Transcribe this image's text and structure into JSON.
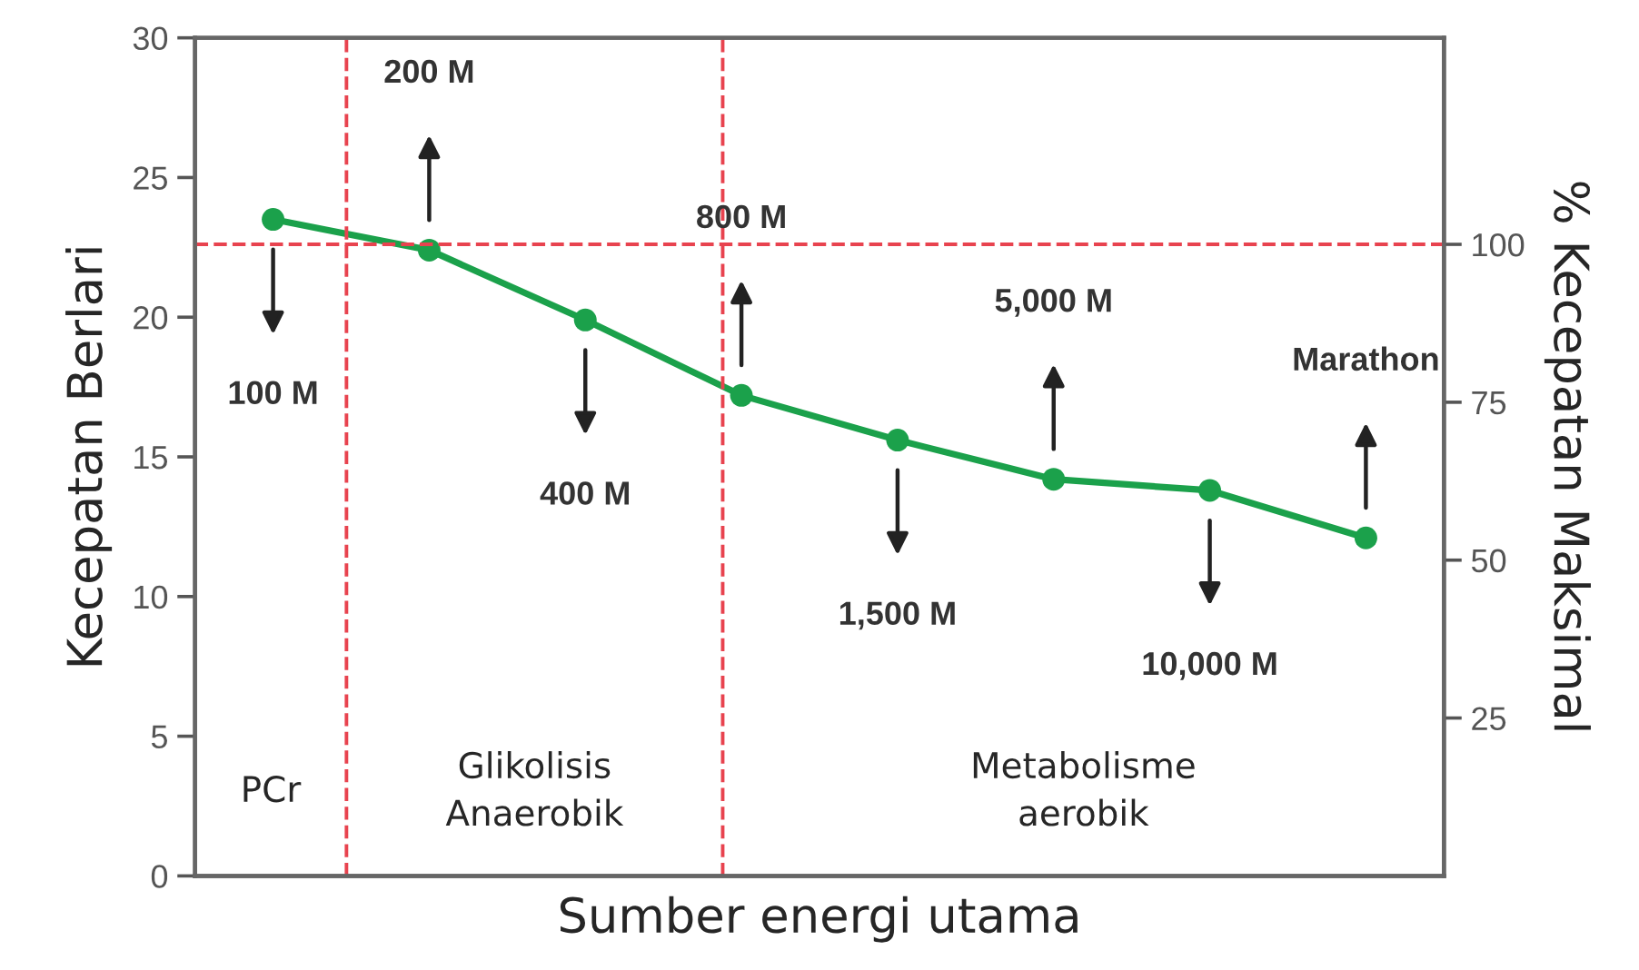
{
  "chart_data": {
    "type": "line",
    "xlabel": "Sumber energi utama",
    "ylabel": "Kecepatan Berlari",
    "y2label": "% Kecepatan Maksimal",
    "categories": [
      "100 M",
      "200 M",
      "400 M",
      "800 M",
      "1,500 M",
      "5,000 M",
      "10,000 M",
      "Marathon"
    ],
    "series": [
      {
        "color": "#1ba14b",
        "values": [
          23.5,
          22.4,
          19.9,
          17.2,
          15.6,
          14.2,
          13.8,
          12.1
        ]
      }
    ],
    "marker": "circle",
    "line_style": "solid",
    "ylim": [
      0,
      30
    ],
    "yticks": [
      0,
      5,
      10,
      15,
      20,
      25,
      30
    ],
    "y2lim": [
      0,
      132.7
    ],
    "y2ticks": [
      25,
      50,
      75,
      100
    ],
    "tick_labels": "y",
    "grid": false,
    "ref_lines": [
      {
        "axis": "y2",
        "value": 100,
        "color": "#e8434f",
        "line_style": "dashed"
      }
    ],
    "annotations": [
      "PCr",
      "Glikolisis\nAnaerobik",
      "Metabolisme\naerobik"
    ]
  }
}
